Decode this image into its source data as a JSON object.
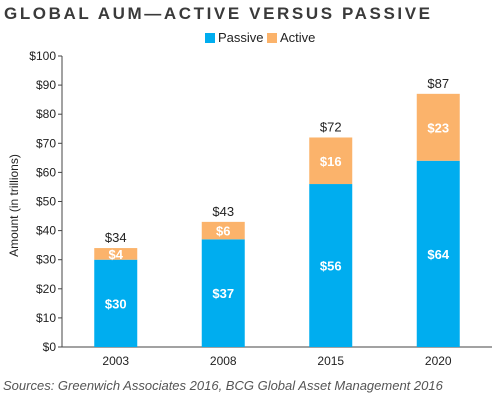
{
  "title": "GLOBAL AUM—ACTIVE VERSUS PASSIVE",
  "source": "Sources: Greenwich Associates 2016, BCG Global Asset Management 2016",
  "chart_data": {
    "type": "bar",
    "stacked": true,
    "title": "GLOBAL AUM—ACTIVE VERSUS PASSIVE",
    "xlabel": "",
    "ylabel": "Amount (in trillions)",
    "categories": [
      "2003",
      "2008",
      "2015",
      "2020"
    ],
    "ylim": [
      0,
      100
    ],
    "yticks": [
      0,
      10,
      20,
      30,
      40,
      50,
      60,
      70,
      80,
      90,
      100
    ],
    "ytick_labels": [
      "$0",
      "$10",
      "$20",
      "$30",
      "$40",
      "$50",
      "$60",
      "$70",
      "$80",
      "$90",
      "$100"
    ],
    "grid": false,
    "legend_position": "top",
    "series": [
      {
        "name": "Passive",
        "values": [
          30,
          37,
          56,
          64
        ],
        "labels": [
          "$30",
          "$37",
          "$56",
          "$64"
        ],
        "color": "#00adef"
      },
      {
        "name": "Active",
        "values": [
          4,
          6,
          16,
          23
        ],
        "labels": [
          "$4",
          "$6",
          "$16",
          "$23"
        ],
        "color": "#fbb36b"
      }
    ],
    "totals": [
      34,
      43,
      72,
      87
    ],
    "total_labels": [
      "$34",
      "$43",
      "$72",
      "$87"
    ]
  }
}
